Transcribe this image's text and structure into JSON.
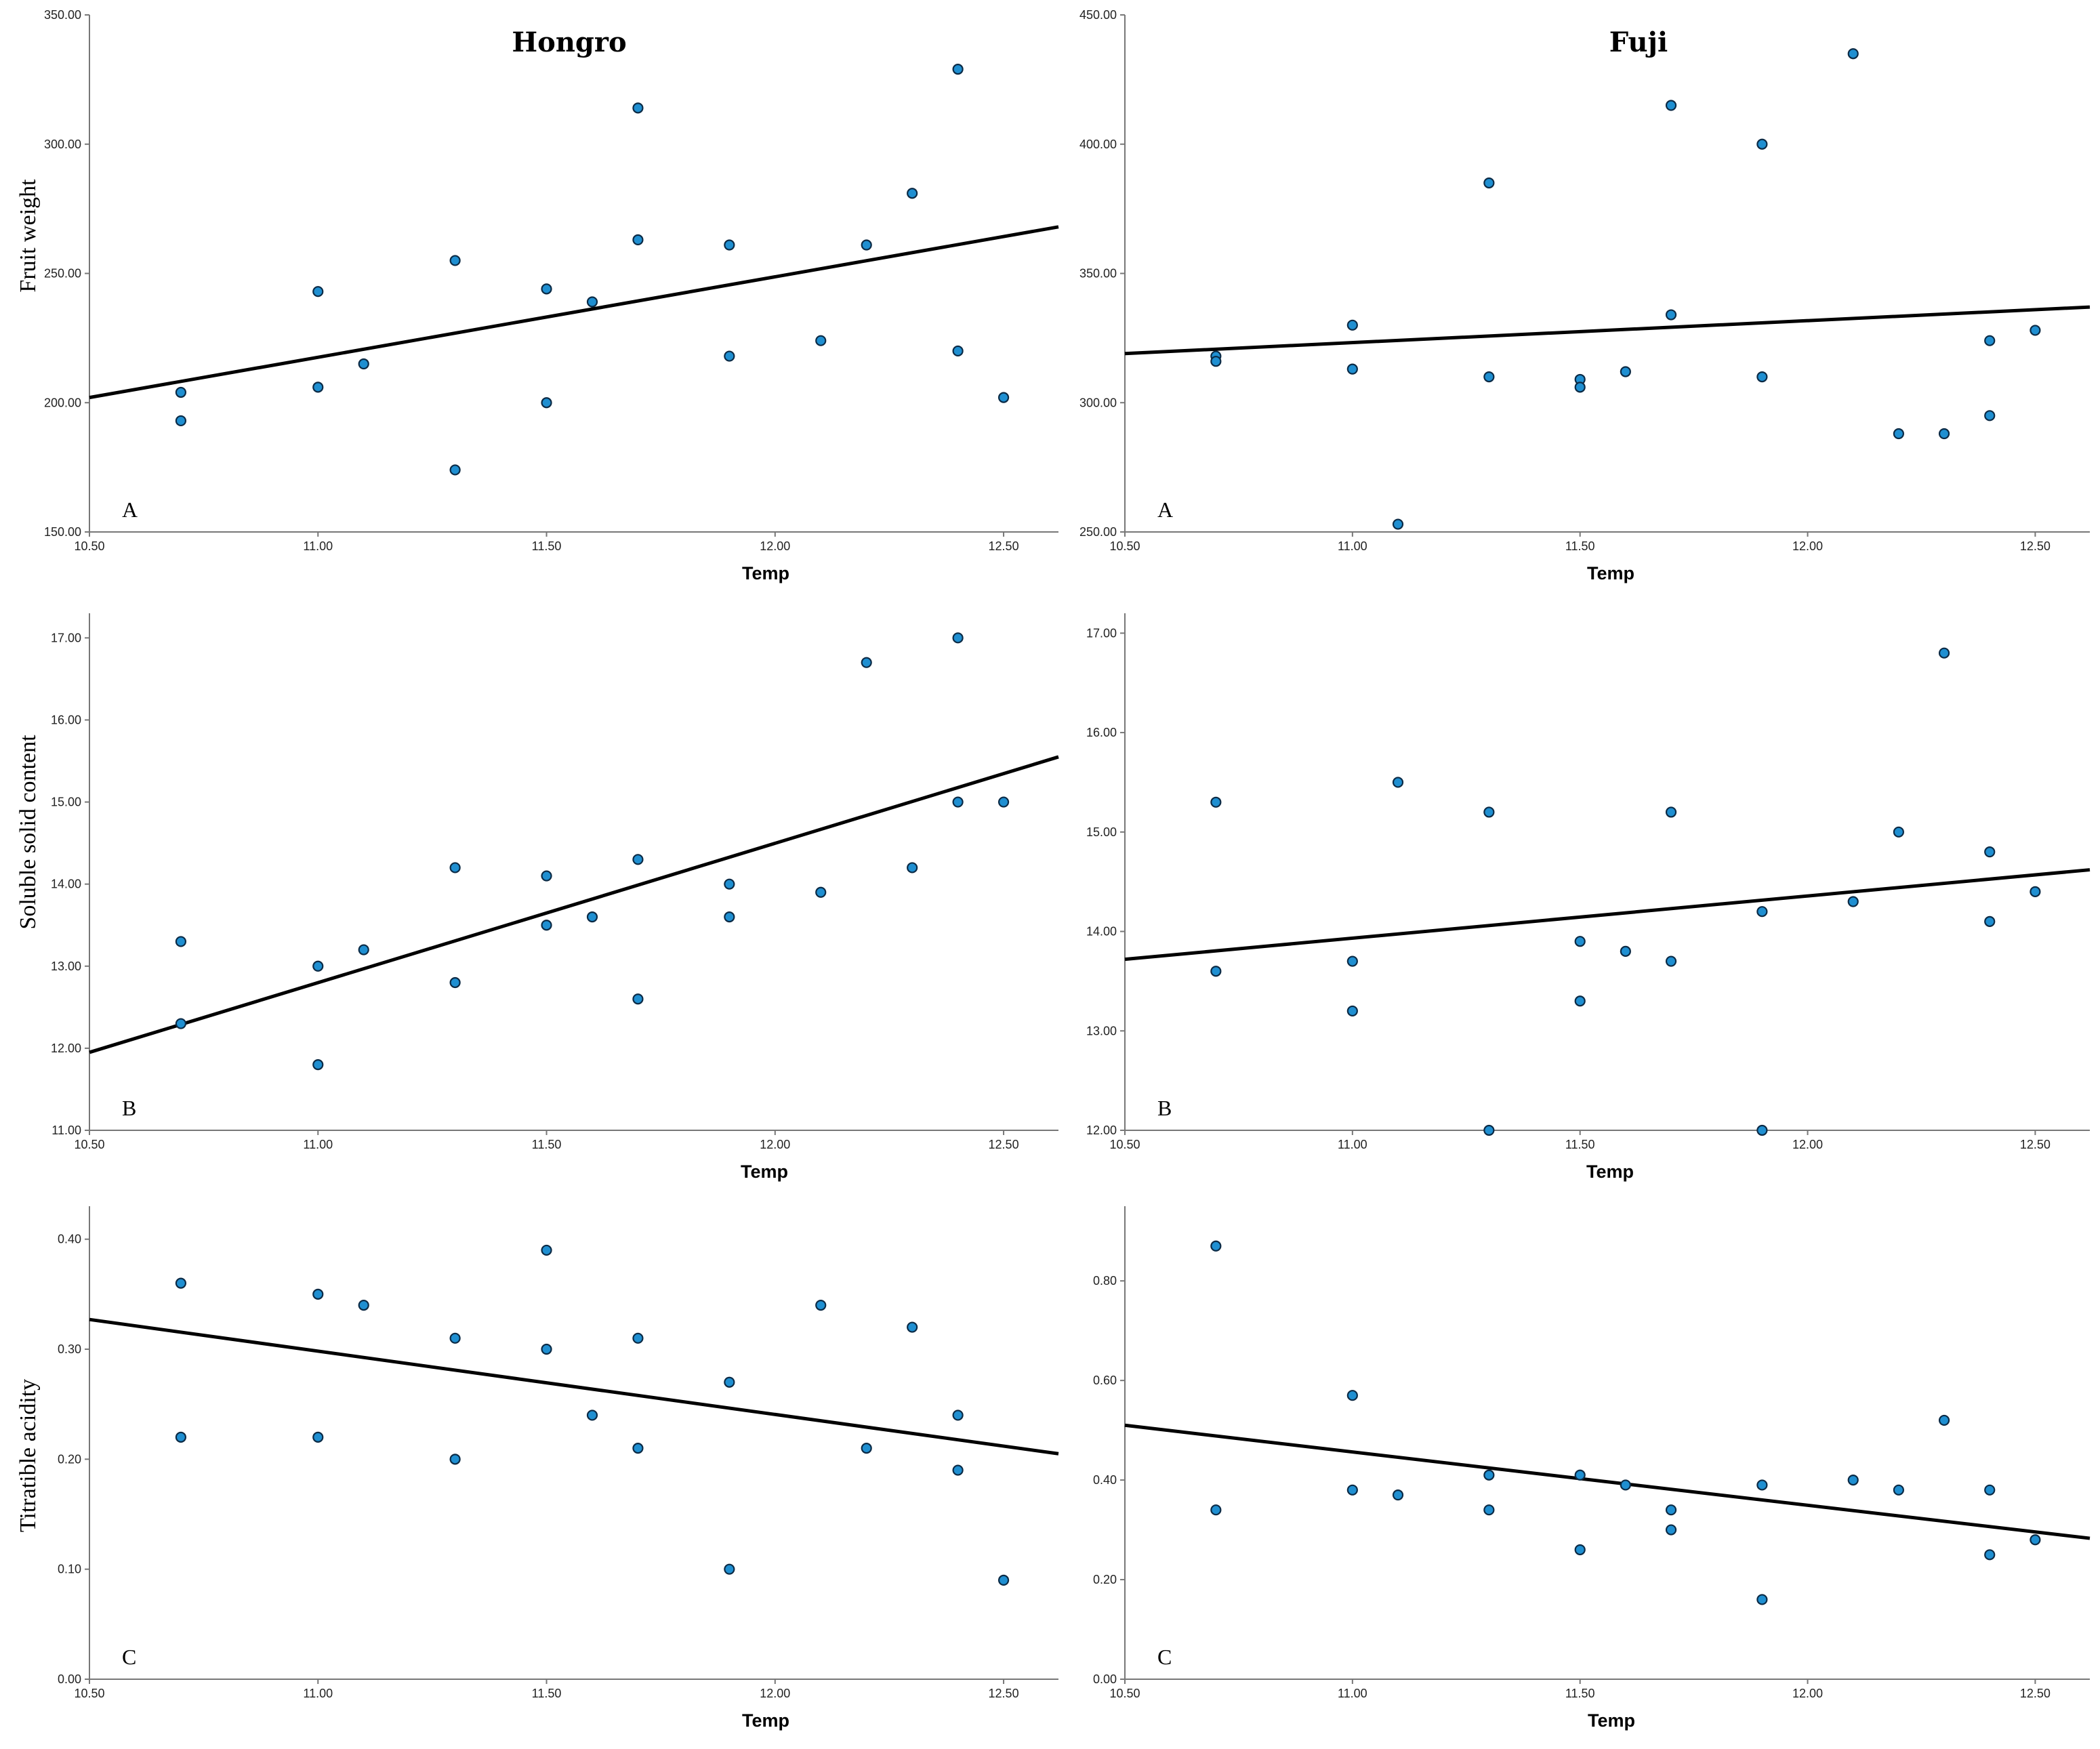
{
  "columns": [
    {
      "title": "Hongro"
    },
    {
      "title": "Fuji"
    }
  ],
  "rows": [
    {
      "ylabel": "Fruit weight"
    },
    {
      "ylabel": "Soluble solid content"
    },
    {
      "ylabel": "Titratible acidity"
    }
  ],
  "chart_data": [
    {
      "id": "hongro-weight",
      "type": "scatter",
      "panel_label": "A",
      "xlabel": "Temp",
      "ylabel": "Fruit weight",
      "xlim": [
        10.5,
        12.62
      ],
      "ylim": [
        150,
        350
      ],
      "xticks": [
        "10.50",
        "11.00",
        "11.50",
        "12.00",
        "12.50"
      ],
      "yticks": [
        "150.00",
        "200.00",
        "250.00",
        "300.00",
        "350.00"
      ],
      "fit": [
        [
          10.5,
          202
        ],
        [
          12.62,
          268
        ]
      ],
      "points": [
        [
          10.7,
          204
        ],
        [
          10.7,
          193
        ],
        [
          11.0,
          243
        ],
        [
          11.0,
          206
        ],
        [
          11.1,
          215
        ],
        [
          11.3,
          255
        ],
        [
          11.3,
          174
        ],
        [
          11.5,
          244
        ],
        [
          11.5,
          200
        ],
        [
          11.6,
          239
        ],
        [
          11.7,
          314
        ],
        [
          11.7,
          263
        ],
        [
          11.9,
          261
        ],
        [
          11.9,
          218
        ],
        [
          12.1,
          224
        ],
        [
          12.2,
          261
        ],
        [
          12.3,
          281
        ],
        [
          12.4,
          329
        ],
        [
          12.4,
          220
        ],
        [
          12.5,
          202
        ]
      ]
    },
    {
      "id": "fuji-weight",
      "type": "scatter",
      "panel_label": "A",
      "xlabel": "Temp",
      "ylabel": "Fruit weight",
      "xlim": [
        10.5,
        12.62
      ],
      "ylim": [
        250,
        450
      ],
      "xticks": [
        "10.50",
        "11.00",
        "11.50",
        "12.00",
        "12.50"
      ],
      "yticks": [
        "250.00",
        "300.00",
        "350.00",
        "400.00",
        "450.00"
      ],
      "fit": [
        [
          10.5,
          319
        ],
        [
          12.62,
          337
        ]
      ],
      "points": [
        [
          10.7,
          318
        ],
        [
          10.7,
          316
        ],
        [
          11.0,
          330
        ],
        [
          11.0,
          313
        ],
        [
          11.1,
          253
        ],
        [
          11.3,
          385
        ],
        [
          11.3,
          310
        ],
        [
          11.5,
          309
        ],
        [
          11.5,
          306
        ],
        [
          11.6,
          312
        ],
        [
          11.7,
          415
        ],
        [
          11.7,
          334
        ],
        [
          11.9,
          400
        ],
        [
          11.9,
          310
        ],
        [
          12.1,
          435
        ],
        [
          12.2,
          288
        ],
        [
          12.3,
          288
        ],
        [
          12.4,
          324
        ],
        [
          12.4,
          295
        ],
        [
          12.5,
          328
        ]
      ]
    },
    {
      "id": "hongro-ssc",
      "type": "scatter",
      "panel_label": "B",
      "xlabel": "Temp",
      "ylabel": "Soluble solid content",
      "xlim": [
        10.5,
        12.62
      ],
      "ylim": [
        11,
        17.3
      ],
      "xticks": [
        "10.50",
        "11.00",
        "11.50",
        "12.00",
        "12.50"
      ],
      "yticks": [
        "11.00",
        "12.00",
        "13.00",
        "14.00",
        "15.00",
        "16.00",
        "17.00"
      ],
      "fit": [
        [
          10.5,
          11.95
        ],
        [
          12.62,
          15.55
        ]
      ],
      "points": [
        [
          10.7,
          13.3
        ],
        [
          10.7,
          12.3
        ],
        [
          11.0,
          13.0
        ],
        [
          11.0,
          11.8
        ],
        [
          11.1,
          13.2
        ],
        [
          11.3,
          14.2
        ],
        [
          11.3,
          12.8
        ],
        [
          11.5,
          14.1
        ],
        [
          11.5,
          13.5
        ],
        [
          11.6,
          13.6
        ],
        [
          11.7,
          14.3
        ],
        [
          11.7,
          12.6
        ],
        [
          11.9,
          14.0
        ],
        [
          11.9,
          13.6
        ],
        [
          12.1,
          13.9
        ],
        [
          12.2,
          16.7
        ],
        [
          12.3,
          14.2
        ],
        [
          12.4,
          17.0
        ],
        [
          12.4,
          15.0
        ],
        [
          12.5,
          15.0
        ]
      ]
    },
    {
      "id": "fuji-ssc",
      "type": "scatter",
      "panel_label": "B",
      "xlabel": "Temp",
      "ylabel": "Soluble solid content",
      "xlim": [
        10.5,
        12.62
      ],
      "ylim": [
        12,
        17.2
      ],
      "xticks": [
        "10.50",
        "11.00",
        "11.50",
        "12.00",
        "12.50"
      ],
      "yticks": [
        "12.00",
        "13.00",
        "14.00",
        "15.00",
        "16.00",
        "17.00"
      ],
      "fit": [
        [
          10.5,
          13.72
        ],
        [
          12.62,
          14.62
        ]
      ],
      "points": [
        [
          10.7,
          15.3
        ],
        [
          10.7,
          13.6
        ],
        [
          11.0,
          13.7
        ],
        [
          11.0,
          13.2
        ],
        [
          11.1,
          15.5
        ],
        [
          11.3,
          15.2
        ],
        [
          11.3,
          12.0
        ],
        [
          11.5,
          13.9
        ],
        [
          11.5,
          13.3
        ],
        [
          11.6,
          13.8
        ],
        [
          11.7,
          15.2
        ],
        [
          11.7,
          13.7
        ],
        [
          11.9,
          14.2
        ],
        [
          11.9,
          12.0
        ],
        [
          12.1,
          14.3
        ],
        [
          12.2,
          15.0
        ],
        [
          12.3,
          16.8
        ],
        [
          12.4,
          14.8
        ],
        [
          12.4,
          14.1
        ],
        [
          12.5,
          14.4
        ]
      ]
    },
    {
      "id": "hongro-ta",
      "type": "scatter",
      "panel_label": "C",
      "xlabel": "Temp",
      "ylabel": "Titratible acidity",
      "xlim": [
        10.5,
        12.62
      ],
      "ylim": [
        0,
        0.43
      ],
      "xticks": [
        "10.50",
        "11.00",
        "11.50",
        "12.00",
        "12.50"
      ],
      "yticks": [
        "0.00",
        "0.10",
        "0.20",
        "0.30",
        "0.40"
      ],
      "fit": [
        [
          10.5,
          0.327
        ],
        [
          12.62,
          0.205
        ]
      ],
      "points": [
        [
          10.7,
          0.36
        ],
        [
          10.7,
          0.22
        ],
        [
          11.0,
          0.35
        ],
        [
          11.0,
          0.22
        ],
        [
          11.1,
          0.34
        ],
        [
          11.3,
          0.31
        ],
        [
          11.3,
          0.2
        ],
        [
          11.5,
          0.39
        ],
        [
          11.5,
          0.3
        ],
        [
          11.6,
          0.24
        ],
        [
          11.7,
          0.31
        ],
        [
          11.7,
          0.21
        ],
        [
          11.9,
          0.27
        ],
        [
          11.9,
          0.1
        ],
        [
          12.1,
          0.34
        ],
        [
          12.2,
          0.21
        ],
        [
          12.3,
          0.32
        ],
        [
          12.4,
          0.24
        ],
        [
          12.4,
          0.19
        ],
        [
          12.5,
          0.09
        ]
      ]
    },
    {
      "id": "fuji-ta",
      "type": "scatter",
      "panel_label": "C",
      "xlabel": "Temp",
      "ylabel": "Titratible acidity",
      "xlim": [
        10.5,
        12.62
      ],
      "ylim": [
        0,
        0.95
      ],
      "xticks": [
        "10.50",
        "11.00",
        "11.50",
        "12.00",
        "12.50"
      ],
      "yticks": [
        "0.00",
        "0.20",
        "0.40",
        "0.60",
        "0.80"
      ],
      "fit": [
        [
          10.5,
          0.51
        ],
        [
          12.62,
          0.283
        ]
      ],
      "points": [
        [
          10.7,
          0.87
        ],
        [
          10.7,
          0.34
        ],
        [
          11.0,
          0.57
        ],
        [
          11.0,
          0.38
        ],
        [
          11.1,
          0.37
        ],
        [
          11.3,
          0.41
        ],
        [
          11.3,
          0.34
        ],
        [
          11.5,
          0.41
        ],
        [
          11.5,
          0.26
        ],
        [
          11.6,
          0.39
        ],
        [
          11.7,
          0.34
        ],
        [
          11.7,
          0.3
        ],
        [
          11.9,
          0.39
        ],
        [
          11.9,
          0.16
        ],
        [
          12.1,
          0.4
        ],
        [
          12.2,
          0.38
        ],
        [
          12.3,
          0.52
        ],
        [
          12.4,
          0.38
        ],
        [
          12.4,
          0.25
        ],
        [
          12.5,
          0.28
        ]
      ]
    }
  ]
}
